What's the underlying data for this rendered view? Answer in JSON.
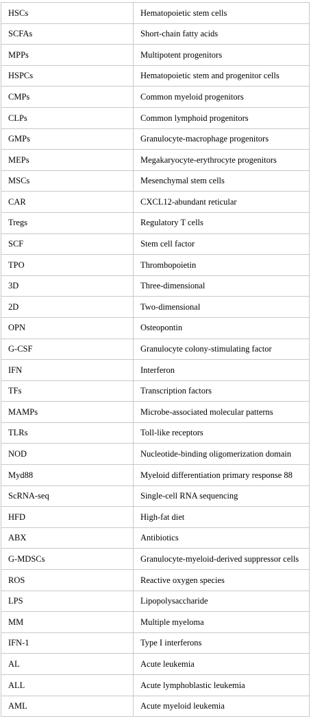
{
  "abbreviations": [
    {
      "abbr": "HSCs",
      "definition": "Hematopoietic stem cells"
    },
    {
      "abbr": "SCFAs",
      "definition": "Short-chain fatty acids"
    },
    {
      "abbr": "MPPs",
      "definition": "Multipotent progenitors"
    },
    {
      "abbr": "HSPCs",
      "definition": "Hematopoietic stem and progenitor cells"
    },
    {
      "abbr": "CMPs",
      "definition": "Common myeloid progenitors"
    },
    {
      "abbr": "CLPs",
      "definition": "Common lymphoid progenitors"
    },
    {
      "abbr": "GMPs",
      "definition": "Granulocyte-macrophage progenitors"
    },
    {
      "abbr": "MEPs",
      "definition": "Megakaryocyte-erythrocyte progenitors"
    },
    {
      "abbr": "MSCs",
      "definition": "Mesenchymal stem cells"
    },
    {
      "abbr": "CAR",
      "definition": "CXCL12-abundant reticular"
    },
    {
      "abbr": "Tregs",
      "definition": "Regulatory T cells"
    },
    {
      "abbr": "SCF",
      "definition": "Stem cell factor"
    },
    {
      "abbr": "TPO",
      "definition": "Thrombopoietin"
    },
    {
      "abbr": "3D",
      "definition": "Three-dimensional"
    },
    {
      "abbr": "2D",
      "definition": "Two-dimensional"
    },
    {
      "abbr": "OPN",
      "definition": "Osteopontin"
    },
    {
      "abbr": "G-CSF",
      "definition": "Granulocyte colony-stimulating factor"
    },
    {
      "abbr": "IFN",
      "definition": "Interferon"
    },
    {
      "abbr": "TFs",
      "definition": "Transcription factors"
    },
    {
      "abbr": "MAMPs",
      "definition": "Microbe-associated molecular patterns"
    },
    {
      "abbr": "TLRs",
      "definition": "Toll-like receptors"
    },
    {
      "abbr": "NOD",
      "definition": "Nucleotide-binding oligomerization domain"
    },
    {
      "abbr": "Myd88",
      "definition": "Myeloid differentiation primary response 88"
    },
    {
      "abbr": "ScRNA-seq",
      "definition": "Single-cell RNA sequencing"
    },
    {
      "abbr": "HFD",
      "definition": "High-fat diet"
    },
    {
      "abbr": "ABX",
      "definition": "Antibiotics"
    },
    {
      "abbr": "G-MDSCs",
      "definition": "Granulocyte-myeloid-derived suppressor cells"
    },
    {
      "abbr": "ROS",
      "definition": "Reactive oxygen species"
    },
    {
      "abbr": "LPS",
      "definition": "Lipopolysaccharide"
    },
    {
      "abbr": "MM",
      "definition": "Multiple myeloma"
    },
    {
      "abbr": "IFN-1",
      "definition": "Type I interferons"
    },
    {
      "abbr": "AL",
      "definition": "Acute leukemia"
    },
    {
      "abbr": "ALL",
      "definition": "Acute lymphoblastic leukemia"
    },
    {
      "abbr": "AML",
      "definition": "Acute myeloid leukemia"
    }
  ]
}
